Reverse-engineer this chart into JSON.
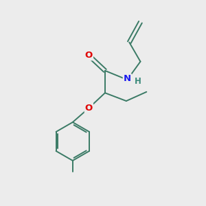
{
  "bg_color": "#ececec",
  "bond_color": "#3a7a65",
  "bond_width": 1.4,
  "atom_colors": {
    "O": "#e00000",
    "N": "#1a1aee",
    "H": "#3a8a7a",
    "C": "#3a7a65"
  },
  "font_size_atom": 9.5,
  "fig_size": [
    3.0,
    3.0
  ],
  "dpi": 100,
  "xlim": [
    0,
    10
  ],
  "ylim": [
    0,
    10
  ]
}
